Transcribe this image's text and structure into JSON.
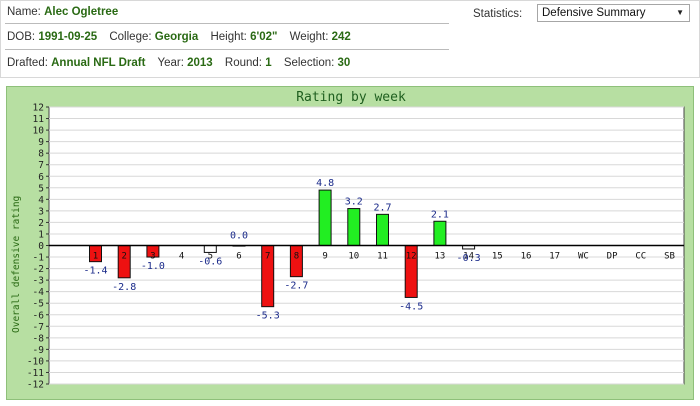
{
  "player": {
    "name_label": "Name:",
    "name": "Alec Ogletree",
    "dob_label": "DOB:",
    "dob": "1991-09-25",
    "college_label": "College:",
    "college": "Georgia",
    "height_label": "Height:",
    "height": "6'02\"",
    "weight_label": "Weight:",
    "weight": "242",
    "drafted_label": "Drafted:",
    "drafted": "Annual NFL Draft",
    "year_label": "Year:",
    "year": "2013",
    "round_label": "Round:",
    "round": "1",
    "selection_label": "Selection:",
    "selection": "30"
  },
  "statistics": {
    "label": "Statistics:",
    "selected": "Defensive Summary",
    "arrow_icon": "triangle-down-icon"
  },
  "chart_data": {
    "type": "bar",
    "title": "Rating by week",
    "ylabel": "Overall defensive rating",
    "ylim": [
      -12,
      12
    ],
    "yticks": [
      12,
      11,
      10,
      9,
      8,
      7,
      6,
      5,
      4,
      3,
      2,
      1,
      0,
      -1,
      -2,
      -3,
      -4,
      -5,
      -6,
      -7,
      -8,
      -9,
      -10,
      -11,
      -12
    ],
    "grid": true,
    "categories": [
      "1",
      "2",
      "3",
      "4",
      "5",
      "6",
      "7",
      "8",
      "9",
      "10",
      "11",
      "12",
      "13",
      "14",
      "15",
      "16",
      "17",
      "WC",
      "DP",
      "CC",
      "SB"
    ],
    "values": [
      -1.4,
      -2.8,
      -1.0,
      null,
      -0.6,
      0.0,
      -5.3,
      -2.7,
      4.8,
      3.2,
      2.7,
      -4.5,
      2.1,
      -0.3,
      null,
      null,
      null,
      null,
      null,
      null,
      null
    ],
    "value_labels": [
      "-1.4",
      "-2.8",
      "-1.0",
      "",
      "-0.6",
      "0.0",
      "-5.3",
      "-2.7",
      "4.8",
      "3.2",
      "2.7",
      "-4.5",
      "2.1",
      "-0.3",
      "",
      "",
      "",
      "",
      "",
      "",
      ""
    ],
    "colors": {
      "positive": "#22ee22",
      "negative": "#ee1111",
      "neutral": "#ffffff",
      "label": "#1a2a8a",
      "axis": "#000000",
      "grid": "#d8d8d8"
    }
  }
}
